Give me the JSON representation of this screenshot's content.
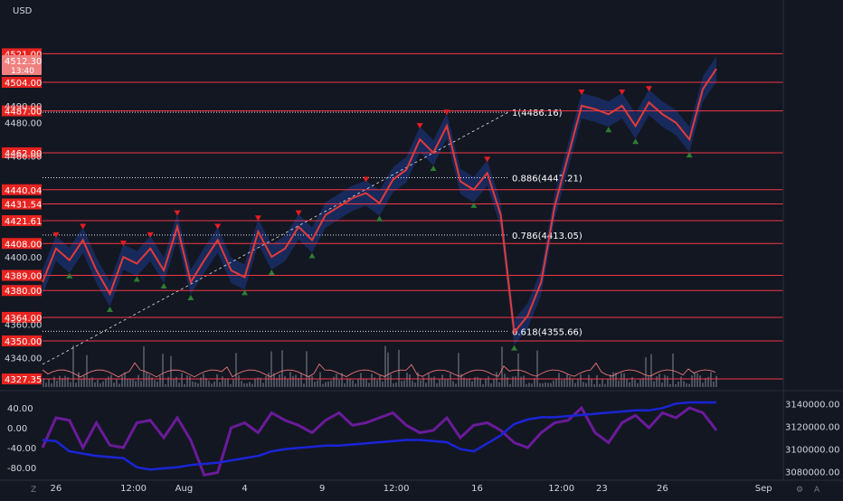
{
  "currency_label": "USD",
  "colors": {
    "background": "#131722",
    "level_line": "#f23645",
    "level_box": "#e8231f",
    "price_line": "#e23a3a",
    "band": "#1e3a8a",
    "osc_purple": "#6a1b9a",
    "osc_blue": "#1a24d6",
    "volume": "#4a4f5c",
    "volume_line": "#ff7f7f",
    "buy_signal": "#2e7d32",
    "sell_signal": "#e51c23"
  },
  "current_price": {
    "value": "4512.30",
    "countdown": "13:40"
  },
  "corner_left": "Z",
  "corner_right": "A",
  "chart_data": {
    "type": "line",
    "price_axis_ticks": [
      "4490.00",
      "4480.00",
      "4460.00",
      "4400.00",
      "4360.00",
      "4340.00"
    ],
    "levels": [
      "4521.00",
      "4504.00",
      "4487.00",
      "4462.00",
      "4440.04",
      "4431.54",
      "4421.61",
      "4408.00",
      "4389.00",
      "4380.00",
      "4364.00",
      "4350.00",
      "4327.35"
    ],
    "fib_labels": [
      "1(4486.16)",
      "0.886(4447.21)",
      "0.786(4413.05)",
      "0.618(4355.66)"
    ],
    "x_ticks": [
      "26",
      "12:00",
      "Aug",
      "4",
      "9",
      "12:00",
      "16",
      "12:00",
      "23",
      "26",
      "Sep"
    ],
    "price_series": {
      "x": [
        0,
        0.02,
        0.04,
        0.06,
        0.08,
        0.1,
        0.12,
        0.14,
        0.16,
        0.18,
        0.2,
        0.22,
        0.24,
        0.26,
        0.28,
        0.3,
        0.32,
        0.34,
        0.36,
        0.38,
        0.4,
        0.42,
        0.44,
        0.46,
        0.48,
        0.5,
        0.52,
        0.54,
        0.56,
        0.58,
        0.6,
        0.62,
        0.64,
        0.66,
        0.68,
        0.7,
        0.72,
        0.74,
        0.76,
        0.78,
        0.8,
        0.82,
        0.84,
        0.86,
        0.88,
        0.9,
        0.92,
        0.94,
        0.96,
        0.98,
        1
      ],
      "y": [
        4385,
        4405,
        4398,
        4410,
        4392,
        4378,
        4400,
        4396,
        4405,
        4392,
        4418,
        4385,
        4398,
        4410,
        4392,
        4388,
        4415,
        4400,
        4405,
        4418,
        4410,
        4425,
        4430,
        4435,
        4438,
        4432,
        4446,
        4452,
        4470,
        4462,
        4478,
        4445,
        4440,
        4450,
        4425,
        4355,
        4365,
        4385,
        4430,
        4460,
        4490,
        4488,
        4485,
        4490,
        4478,
        4492,
        4485,
        4480,
        4470,
        4500,
        4512
      ]
    },
    "oscillator_left": {
      "ticks": [
        "40.00",
        "0.00",
        "-40.00",
        "-80.00"
      ],
      "ylim": [
        -100,
        60
      ]
    },
    "oscillator_right": {
      "ticks": [
        "3140000.00",
        "3120000.00",
        "3100000.00",
        "3080000.00"
      ],
      "ylim": [
        3075000,
        3145000
      ]
    },
    "purple_series": [
      -40,
      20,
      15,
      -40,
      10,
      -35,
      -40,
      10,
      15,
      -20,
      20,
      -25,
      -95,
      -90,
      0,
      10,
      -10,
      30,
      15,
      5,
      -10,
      15,
      30,
      5,
      10,
      20,
      30,
      5,
      -10,
      -5,
      20,
      -20,
      5,
      10,
      -5,
      -30,
      -40,
      -10,
      10,
      15,
      40,
      -10,
      -30,
      10,
      25,
      0,
      30,
      20,
      40,
      30,
      -5
    ],
    "blue_series": [
      3108000,
      3107000,
      3098000,
      3096000,
      3094000,
      3093000,
      3092000,
      3084000,
      3082000,
      3083000,
      3084000,
      3086000,
      3087000,
      3088000,
      3090000,
      3092000,
      3094000,
      3098000,
      3100000,
      3101000,
      3102000,
      3103000,
      3103000,
      3104000,
      3105000,
      3106000,
      3107000,
      3108000,
      3108000,
      3107000,
      3106000,
      3100000,
      3098000,
      3105000,
      3112000,
      3122000,
      3126000,
      3128000,
      3128000,
      3129000,
      3130000,
      3131000,
      3132000,
      3133000,
      3134000,
      3134000,
      3136000,
      3140000,
      3141000,
      3141000,
      3141000
    ]
  }
}
